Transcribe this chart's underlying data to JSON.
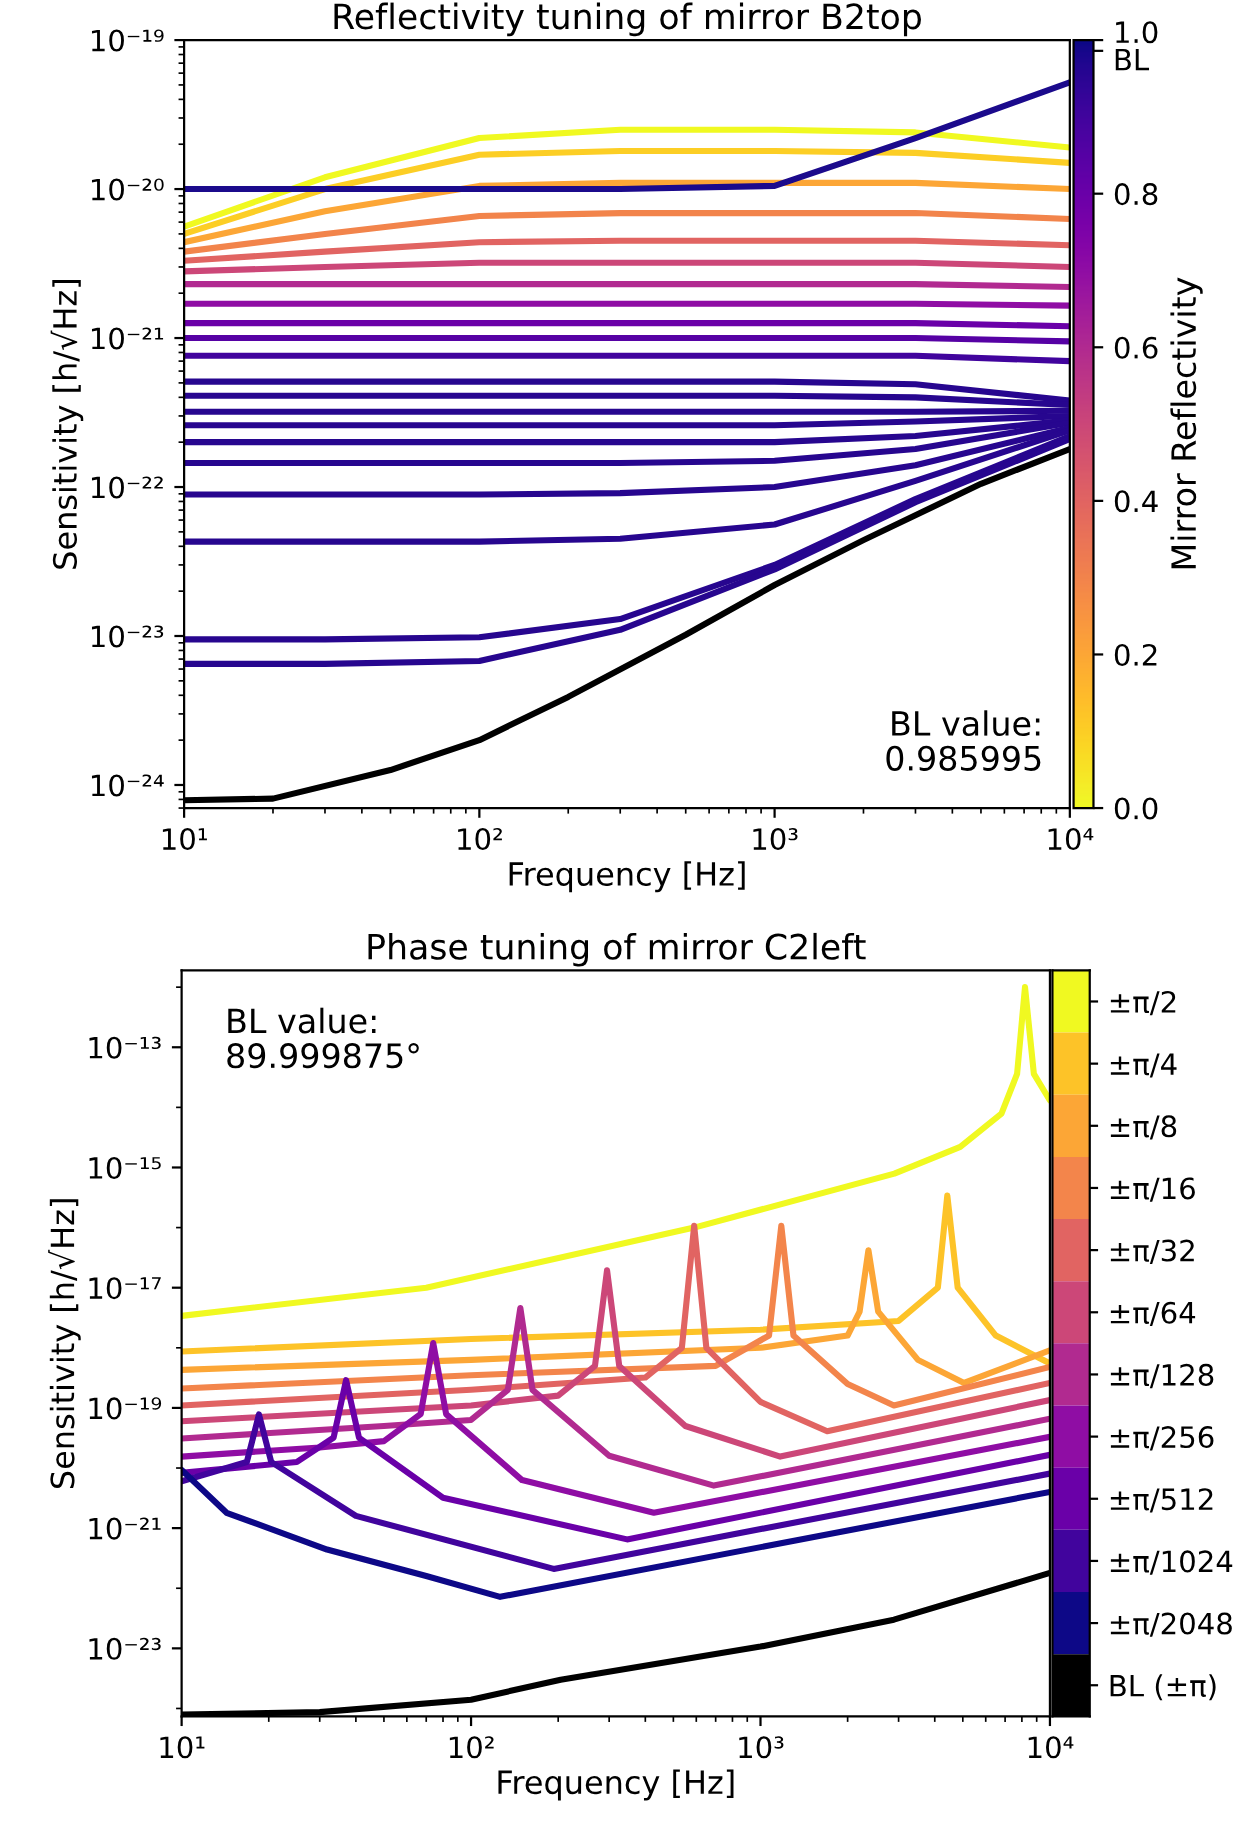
{
  "chart_data": [
    {
      "type": "line",
      "title": "Reflectivity tuning of mirror B2top",
      "xlabel": "Frequency [Hz]",
      "ylabel": "Sensitivity [h/√Hz]",
      "clabel": "Mirror Reflectivity",
      "log": "xy",
      "annotations": [
        "BL value:\n0.985995"
      ],
      "xlim": [
        10,
        10000
      ],
      "ylim": [
        7e-25,
        1e-19
      ],
      "xticks": [
        {
          "value": 10,
          "label": "10¹"
        },
        {
          "value": 100,
          "label": "10²"
        },
        {
          "value": 1000,
          "label": "10³"
        },
        {
          "value": 10000,
          "label": "10⁴"
        }
      ],
      "yticks": [
        {
          "value": 1e-24,
          "label": "10⁻²⁴"
        },
        {
          "value": 1e-23,
          "label": "10⁻²³"
        },
        {
          "value": 1e-22,
          "label": "10⁻²²"
        },
        {
          "value": 1e-21,
          "label": "10⁻²¹"
        },
        {
          "value": 1e-20,
          "label": "10⁻²⁰"
        },
        {
          "value": 1e-19,
          "label": "10⁻¹⁹"
        }
      ],
      "clim": [
        0,
        1
      ],
      "cticks": [
        {
          "value": 0,
          "label": "0.0"
        },
        {
          "value": 0.2,
          "label": "0.2"
        },
        {
          "value": 0.4,
          "label": "0.4"
        },
        {
          "value": 0.6,
          "label": "0.6"
        },
        {
          "value": 0.8,
          "label": "0.8"
        },
        {
          "value": 1,
          "label": "1.0"
        },
        {
          "value": 0.985995,
          "label": "BL"
        }
      ],
      "x": [
        10,
        30,
        100,
        300,
        1000,
        3000,
        10000
      ],
      "series": [
        {
          "color": "#f0f921",
          "values": [
            5.6e-21,
            1.2e-20,
            2.2e-20,
            2.5e-20,
            2.5e-20,
            2.4e-20,
            1.9e-20
          ]
        },
        {
          "color": "#fcce25",
          "values": [
            5e-21,
            1e-20,
            1.7e-20,
            1.8e-20,
            1.8e-20,
            1.75e-20,
            1.5e-20
          ]
        },
        {
          "color": "#fca636",
          "values": [
            4.4e-21,
            7.1e-21,
            1.05e-20,
            1.1e-20,
            1.1e-20,
            1.1e-20,
            1e-20
          ]
        },
        {
          "color": "#f2844b",
          "values": [
            3.8e-21,
            5e-21,
            6.6e-21,
            6.9e-21,
            6.9e-21,
            6.9e-21,
            6.3e-21
          ]
        },
        {
          "color": "#e16462",
          "values": [
            3.3e-21,
            3.8e-21,
            4.4e-21,
            4.5e-21,
            4.5e-21,
            4.5e-21,
            4.2e-21
          ]
        },
        {
          "color": "#cc4778",
          "values": [
            2.8e-21,
            3e-21,
            3.2e-21,
            3.2e-21,
            3.2e-21,
            3.2e-21,
            3e-21
          ]
        },
        {
          "color": "#b12a90",
          "values": [
            2.3e-21,
            2.3e-21,
            2.3e-21,
            2.3e-21,
            2.3e-21,
            2.3e-21,
            2.2e-21
          ]
        },
        {
          "color": "#8f0da4",
          "values": [
            1.7e-21,
            1.7e-21,
            1.7e-21,
            1.7e-21,
            1.7e-21,
            1.7e-21,
            1.65e-21
          ]
        },
        {
          "color": "#6a00a8",
          "values": [
            1.26e-21,
            1.26e-21,
            1.26e-21,
            1.26e-21,
            1.26e-21,
            1.26e-21,
            1.2e-21
          ]
        },
        {
          "color": "#5601a4",
          "values": [
            1e-21,
            1e-21,
            1e-21,
            1e-21,
            1e-21,
            1e-21,
            9.5e-22
          ]
        },
        {
          "color": "#41049d",
          "values": [
            7.6e-22,
            7.6e-22,
            7.6e-22,
            7.6e-22,
            7.6e-22,
            7.6e-22,
            7e-22
          ]
        },
        {
          "color": "#27068f",
          "values": [
            5.1e-22,
            5.1e-22,
            5.1e-22,
            5.1e-22,
            5.1e-22,
            4.9e-22,
            3.8e-22
          ]
        },
        {
          "color": "#27068f",
          "values": [
            4.1e-22,
            4.1e-22,
            4.1e-22,
            4.1e-22,
            4.1e-22,
            4e-22,
            3.55e-22
          ]
        },
        {
          "color": "#27068f",
          "values": [
            3.2e-22,
            3.2e-22,
            3.2e-22,
            3.2e-22,
            3.2e-22,
            3.2e-22,
            3.25e-22
          ]
        },
        {
          "color": "#27068f",
          "values": [
            2.6e-22,
            2.6e-22,
            2.6e-22,
            2.6e-22,
            2.6e-22,
            2.75e-22,
            3e-22
          ]
        },
        {
          "color": "#27068f",
          "values": [
            2e-22,
            2e-22,
            2e-22,
            2e-22,
            2e-22,
            2.2e-22,
            2.8e-22
          ]
        },
        {
          "color": "#27068f",
          "values": [
            1.45e-22,
            1.45e-22,
            1.45e-22,
            1.45e-22,
            1.5e-22,
            1.8e-22,
            2.7e-22
          ]
        },
        {
          "color": "#27068f",
          "values": [
            8.9e-23,
            8.9e-23,
            8.9e-23,
            9.1e-23,
            1e-22,
            1.4e-22,
            2.5e-22
          ]
        },
        {
          "color": "#27068f",
          "values": [
            4.3e-23,
            4.3e-23,
            4.3e-23,
            4.5e-23,
            5.6e-23,
            1.1e-22,
            2.4e-22
          ]
        },
        {
          "color": "#27068f",
          "values": [
            9.5e-24,
            9.5e-24,
            9.8e-24,
            1.3e-23,
            3e-23,
            8.3e-23,
            2.2e-22
          ]
        },
        {
          "color": "#27068f",
          "values": [
            6.5e-24,
            6.5e-24,
            6.8e-24,
            1.1e-23,
            2.8e-23,
            7.9e-23,
            2.1e-22
          ]
        },
        {
          "color": "#1b0a8c",
          "values": [
            1e-20,
            1e-20,
            1e-20,
            1e-20,
            1.05e-20,
            2.2e-20,
            5.2e-20
          ]
        },
        {
          "color": "#000000",
          "x": [
            10,
            20,
            50,
            100,
            200,
            500,
            1000,
            2000,
            5000,
            10000
          ],
          "values": [
            7.9e-25,
            8.1e-25,
            1.26e-24,
            2e-24,
            3.9e-24,
            1.02e-23,
            2.2e-23,
            4.4e-23,
            1.05e-22,
            1.8e-22
          ]
        }
      ]
    },
    {
      "type": "line",
      "title": "Phase tuning of mirror C2left",
      "xlabel": "Frequency [Hz]",
      "ylabel": "Sensitivity [h/√Hz]",
      "log": "xy",
      "legend": "right",
      "annotations": [
        "BL value:\n89.999875°"
      ],
      "xlim": [
        10,
        10000
      ],
      "ylim": [
        7.4e-25,
        1.9e-12
      ],
      "xticks": [
        {
          "value": 10,
          "label": "10¹"
        },
        {
          "value": 100,
          "label": "10²"
        },
        {
          "value": 1000,
          "label": "10³"
        },
        {
          "value": 10000,
          "label": "10⁴"
        }
      ],
      "yticks": [
        {
          "value": 1e-23,
          "label": "10⁻²³"
        },
        {
          "value": 1e-21,
          "label": "10⁻²¹"
        },
        {
          "value": 1e-19,
          "label": "10⁻¹⁹"
        },
        {
          "value": 1e-17,
          "label": "10⁻¹⁷"
        },
        {
          "value": 1e-15,
          "label": "10⁻¹⁵"
        },
        {
          "value": 1e-13,
          "label": "10⁻¹³"
        }
      ],
      "series": [
        {
          "name": "±π/2",
          "color": "#f0f921",
          "x": [
            10,
            70,
            590,
            2900,
            4900,
            6800,
            7700,
            8200,
            8800,
            10000
          ],
          "values": [
            3.4e-18,
            1e-17,
            1e-16,
            7.9e-16,
            2.2e-15,
            7.9e-15,
            3.6e-14,
            1e-12,
            3.6e-14,
            1.3e-14
          ]
        },
        {
          "name": "±π/4",
          "color": "#fdc328",
          "x": [
            10,
            100,
            1000,
            3000,
            4100,
            4420,
            4800,
            6500,
            10000
          ],
          "values": [
            8.7e-19,
            1.4e-18,
            2e-18,
            2.8e-18,
            1e-17,
            3.4e-16,
            1e-17,
            1.6e-18,
            5.5e-19
          ]
        },
        {
          "name": "±π/8",
          "color": "#fca636",
          "x": [
            10,
            100,
            1000,
            2000,
            2200,
            2360,
            2550,
            3500,
            5050,
            10000
          ],
          "values": [
            4.3e-19,
            6.3e-19,
            1e-18,
            1.6e-18,
            4e-18,
            4.2e-17,
            4e-18,
            6.3e-19,
            2.6e-19,
            9.1e-19
          ]
        },
        {
          "name": "±π/16",
          "color": "#f3854b",
          "x": [
            10,
            100,
            700,
            1070,
            1180,
            1300,
            2000,
            2890,
            10000
          ],
          "values": [
            2.1e-19,
            3.5e-19,
            5e-19,
            1.6e-18,
            1.07e-16,
            1.6e-18,
            2.5e-19,
            1.1e-19,
            4.8e-19
          ]
        },
        {
          "name": "±π/32",
          "color": "#e16462",
          "x": [
            10,
            100,
            400,
            535,
            590,
            650,
            1000,
            1700,
            10000
          ],
          "values": [
            1.1e-19,
            2e-19,
            3.2e-19,
            1e-18,
            1.07e-16,
            1e-18,
            1.26e-19,
            4.1e-20,
            2.6e-19
          ]
        },
        {
          "name": "±π/64",
          "color": "#cc4778",
          "x": [
            10,
            100,
            200,
            268,
            295,
            325,
            550,
            1170,
            10000
          ],
          "values": [
            6e-20,
            1.1e-19,
            1.6e-19,
            5e-19,
            1.95e-17,
            5e-19,
            5e-20,
            1.55e-20,
            1.35e-19
          ]
        },
        {
          "name": "±π/128",
          "color": "#b12a90",
          "x": [
            10,
            50,
            100,
            134,
            148,
            163,
            300,
            690,
            10000
          ],
          "values": [
            3.1e-20,
            5e-20,
            6.3e-20,
            2e-19,
            4.6e-18,
            2e-19,
            1.6e-20,
            5.1e-21,
            6.6e-20
          ]
        },
        {
          "name": "±π/256",
          "color": "#8f0da4",
          "x": [
            10,
            30,
            50,
            67,
            74,
            82,
            150,
            428,
            10000
          ],
          "values": [
            1.55e-20,
            2.2e-20,
            2.8e-20,
            7.9e-20,
            1.2e-18,
            7.9e-20,
            6.3e-21,
            1.8e-21,
            3.3e-20
          ]
        },
        {
          "name": "±π/512",
          "color": "#6a00a8",
          "x": [
            10,
            25,
            33.5,
            37,
            41,
            80,
            346,
            10000
          ],
          "values": [
            8.3e-21,
            1.26e-20,
            3.2e-20,
            2.9e-19,
            3.2e-20,
            3.2e-21,
            6.5e-22,
            1.66e-20
          ]
        },
        {
          "name": "±π/1024",
          "color": "#41049d",
          "x": [
            10,
            16.8,
            18.5,
            20.4,
            40,
            193,
            10000
          ],
          "values": [
            6e-21,
            1.26e-20,
            7.8e-20,
            1.26e-20,
            1.6e-21,
            2.1e-22,
            8.1e-21
          ]
        },
        {
          "name": "±π/2048",
          "color": "#0d0887",
          "x": [
            10,
            14.3,
            31.8,
            70,
            126,
            10000
          ],
          "values": [
            9.3e-21,
            1.8e-21,
            4.4e-22,
            1.6e-22,
            7.2e-23,
            4e-21
          ]
        },
        {
          "name": "BL (±π)",
          "color": "#000000",
          "x": [
            10,
            30,
            100,
            204,
            1000,
            2890,
            10000
          ],
          "values": [
            7.9e-25,
            8.7e-25,
            1.4e-24,
            3e-24,
            1.07e-23,
            3e-23,
            1.8e-22
          ]
        }
      ]
    }
  ]
}
